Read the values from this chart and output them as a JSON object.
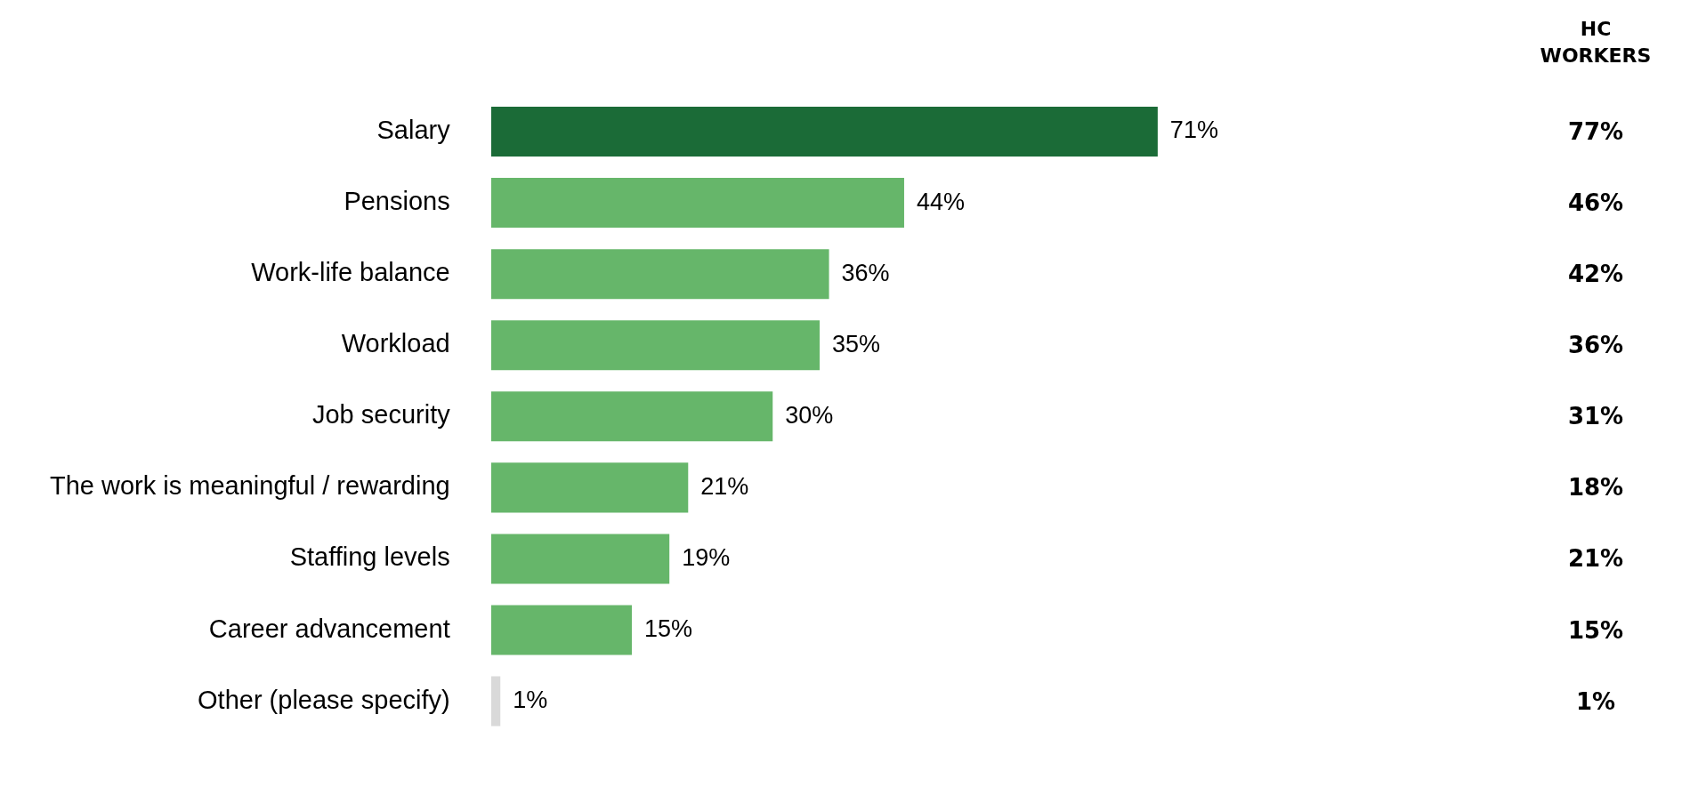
{
  "chart_data": [
    {
      "type": "bar",
      "orientation": "horizontal",
      "legend": false,
      "categories": [
        "Salary",
        "Pensions",
        "Work-life balance",
        "Workload",
        "Job security",
        "The work is meaningful / rewarding",
        "Staffing levels",
        "Career advancement",
        "Other (please specify)"
      ],
      "values": [
        71,
        44,
        36,
        35,
        30,
        21,
        19,
        15,
        1
      ],
      "value_labels": [
        "71%",
        "44%",
        "36%",
        "35%",
        "30%",
        "21%",
        "19%",
        "15%",
        "1%"
      ],
      "colors": [
        "#1b6b37",
        "#66b66a",
        "#66b66a",
        "#66b66a",
        "#66b66a",
        "#66b66a",
        "#66b66a",
        "#66b66a",
        "#d9d9d9"
      ]
    },
    {
      "type": "other",
      "title": "HC WORKERS",
      "categories": [
        null,
        null,
        null,
        null,
        null,
        null,
        null,
        null,
        null
      ],
      "values": [
        77,
        46,
        42,
        36,
        31,
        18,
        21,
        15,
        1
      ],
      "value_labels": [
        "77%",
        "46%",
        "42%",
        "36%",
        "31%",
        "18%",
        "21%",
        "15%",
        "1%"
      ]
    }
  ]
}
